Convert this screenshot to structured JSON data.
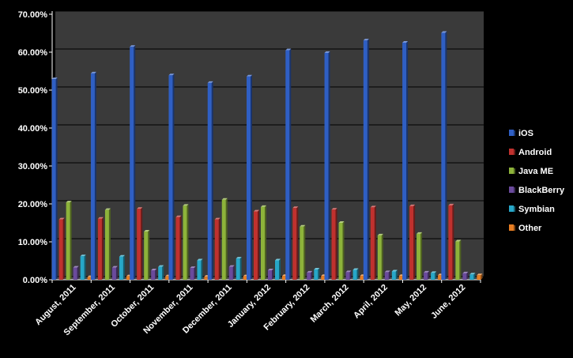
{
  "chart_data": {
    "type": "bar",
    "title": "",
    "xlabel": "",
    "ylabel": "",
    "ylim": [
      0,
      70
    ],
    "y_tick_step": 10,
    "y_tick_format": "percent_2dp",
    "grid": true,
    "legend_position": "right",
    "plot_background": "#3a3a3a",
    "page_background": "#000000",
    "text_color": "#ffffff",
    "categories": [
      "August, 2011",
      "September, 2011",
      "October, 2011",
      "November, 2011",
      "December, 2011",
      "January, 2012",
      "February, 2012",
      "March, 2012",
      "April, 2012",
      "May, 2012",
      "June, 2012"
    ],
    "series": [
      {
        "name": "iOS",
        "color": "#2f5fc4",
        "values": [
          52.9,
          54.4,
          61.4,
          53.9,
          51.9,
          53.6,
          60.5,
          59.8,
          63.1,
          62.5,
          65.1
        ]
      },
      {
        "name": "Android",
        "color": "#c0312e",
        "values": [
          15.9,
          16.1,
          18.7,
          16.5,
          15.9,
          18.0,
          18.9,
          18.5,
          19.1,
          19.4,
          19.6
        ]
      },
      {
        "name": "Java ME",
        "color": "#8db33a",
        "values": [
          20.4,
          18.4,
          12.7,
          19.5,
          21.1,
          19.2,
          14.0,
          15.0,
          11.7,
          12.1,
          10.1
        ]
      },
      {
        "name": "BlackBerry",
        "color": "#6a4a9c",
        "values": [
          3.2,
          3.2,
          2.5,
          3.1,
          3.4,
          2.5,
          1.9,
          2.0,
          2.0,
          1.9,
          1.7
        ]
      },
      {
        "name": "Symbian",
        "color": "#27a7c8",
        "values": [
          6.2,
          6.1,
          3.4,
          5.1,
          5.6,
          5.1,
          2.7,
          2.6,
          2.2,
          1.8,
          1.4
        ]
      },
      {
        "name": "Other",
        "color": "#e77d22",
        "values": [
          0.7,
          0.9,
          0.9,
          0.8,
          0.9,
          1.0,
          1.0,
          1.0,
          1.0,
          1.2,
          1.2
        ]
      }
    ]
  }
}
